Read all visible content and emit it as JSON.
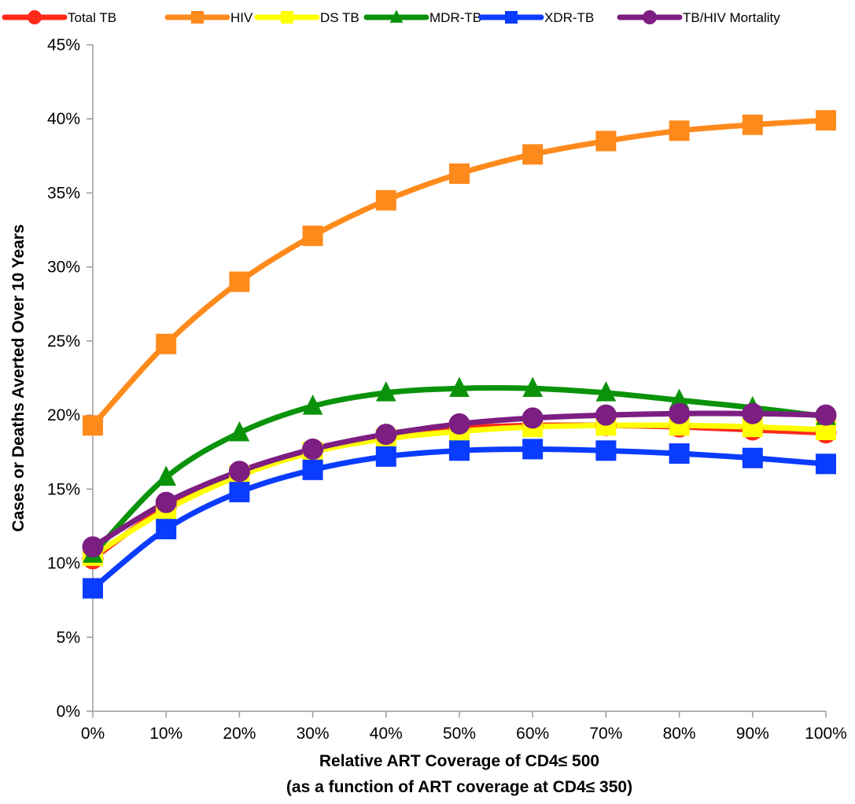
{
  "chart_data": {
    "type": "line",
    "xlabel_line1": "Relative ART Coverage of CD4≤ 500",
    "xlabel_line2": "(as a function of ART coverage at CD4≤ 350)",
    "ylabel": "Cases or Deaths Averted Over 10 Years",
    "x": [
      0,
      10,
      20,
      30,
      40,
      50,
      60,
      70,
      80,
      90,
      100
    ],
    "x_tick_labels": [
      "0%",
      "10%",
      "20%",
      "30%",
      "40%",
      "50%",
      "60%",
      "70%",
      "80%",
      "90%",
      "100%"
    ],
    "y_tick_labels": [
      "0%",
      "5%",
      "10%",
      "15%",
      "20%",
      "25%",
      "30%",
      "35%",
      "40%",
      "45%"
    ],
    "xlim": [
      0,
      100
    ],
    "ylim": [
      0,
      45
    ],
    "grid": false,
    "legend_position": "top",
    "series": [
      {
        "name": "Total TB",
        "color": "#ff2a1a",
        "marker": "circle",
        "values": [
          10.3,
          13.8,
          16.1,
          17.7,
          18.6,
          19.1,
          19.3,
          19.3,
          19.2,
          19.0,
          18.8
        ]
      },
      {
        "name": "HIV",
        "color": "#ff8a1c",
        "marker": "square",
        "values": [
          19.3,
          24.8,
          29.0,
          32.1,
          34.5,
          36.3,
          37.6,
          38.5,
          39.2,
          39.6,
          39.9
        ]
      },
      {
        "name": "DS TB",
        "color": "#ffff00",
        "marker": "square",
        "values": [
          10.5,
          13.6,
          15.9,
          17.5,
          18.4,
          18.9,
          19.2,
          19.3,
          19.3,
          19.2,
          19.0
        ]
      },
      {
        "name": "MDR-TB",
        "color": "#0a930a",
        "marker": "triangle",
        "values": [
          10.6,
          15.8,
          18.8,
          20.6,
          21.5,
          21.8,
          21.8,
          21.5,
          21.0,
          20.5,
          19.9
        ]
      },
      {
        "name": "XDR-TB",
        "color": "#0a3cff",
        "marker": "square",
        "values": [
          8.3,
          12.3,
          14.8,
          16.3,
          17.2,
          17.6,
          17.7,
          17.6,
          17.4,
          17.1,
          16.7
        ]
      },
      {
        "name": "TB/HIV Mortality",
        "color": "#7d1e82",
        "marker": "circle",
        "values": [
          11.1,
          14.1,
          16.2,
          17.7,
          18.7,
          19.4,
          19.8,
          20.0,
          20.1,
          20.1,
          20.0
        ]
      }
    ]
  }
}
